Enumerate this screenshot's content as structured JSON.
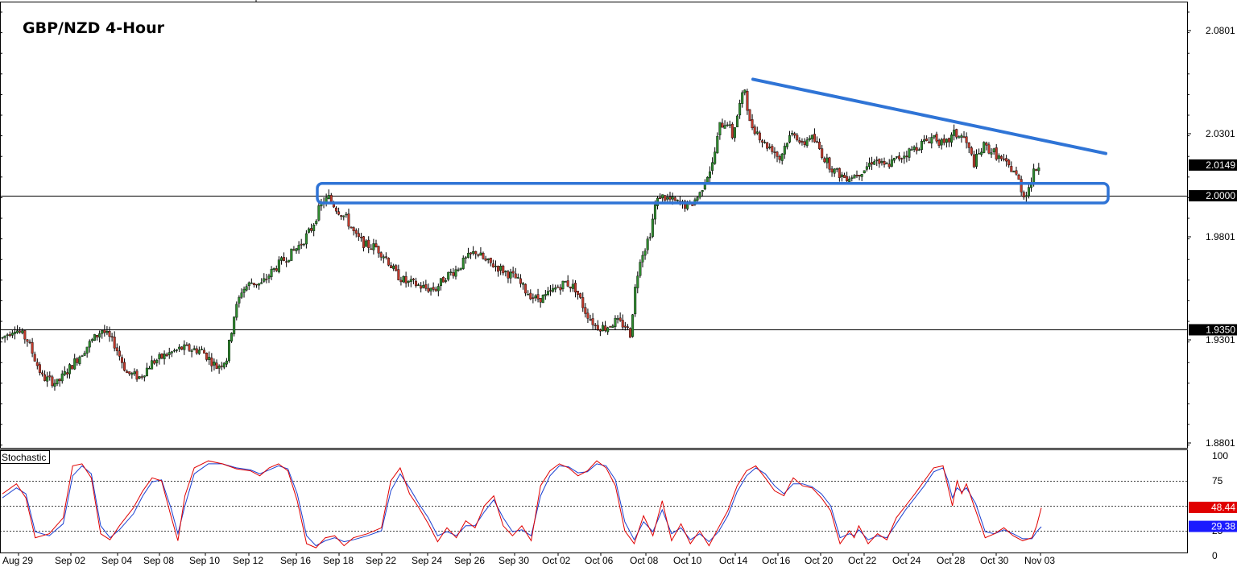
{
  "chart_data": {
    "type": "candlestick",
    "title": "GBP/NZD 4-Hour",
    "y_ticks": [
      "2.0801",
      "2.0301",
      "1.9801",
      "1.9301",
      "1.8801"
    ],
    "ylim": [
      1.8801,
      2.0931
    ],
    "x_ticks": [
      "Aug 29",
      "Sep 02",
      "Sep 04",
      "Sep 08",
      "Sep 10",
      "Sep 12",
      "Sep 16",
      "Sep 18",
      "Sep 22",
      "Sep 24",
      "Sep 26",
      "Sep 30",
      "Oct 02",
      "Oct 06",
      "Oct 08",
      "Oct 10",
      "Oct 14",
      "Oct 16",
      "Oct 20",
      "Oct 22",
      "Oct 24",
      "Oct 28",
      "Oct 30",
      "Nov 03"
    ],
    "levels": [
      {
        "label": "2.0000",
        "value": 2.0
      },
      {
        "label": "1.9350",
        "value": 1.935
      }
    ],
    "current_price": {
      "label": "2.0149",
      "value": 2.0149
    },
    "trendline": {
      "from": 2.0565,
      "to": 2.0205
    },
    "support_zone": {
      "top": 2.006,
      "bottom": 1.9965
    },
    "anchors": [
      [
        0,
        1.931
      ],
      [
        5,
        1.936
      ],
      [
        10,
        1.93
      ],
      [
        16,
        1.912
      ],
      [
        22,
        1.909
      ],
      [
        28,
        1.918
      ],
      [
        34,
        1.927
      ],
      [
        40,
        1.935
      ],
      [
        45,
        1.928
      ],
      [
        50,
        1.914
      ],
      [
        55,
        1.912
      ],
      [
        60,
        1.919
      ],
      [
        66,
        1.923
      ],
      [
        72,
        1.926
      ],
      [
        80,
        1.925
      ],
      [
        86,
        1.917
      ],
      [
        90,
        1.921
      ],
      [
        93,
        1.942
      ],
      [
        96,
        1.954
      ],
      [
        100,
        1.958
      ],
      [
        104,
        1.957
      ],
      [
        108,
        1.963
      ],
      [
        112,
        1.968
      ],
      [
        116,
        1.972
      ],
      [
        120,
        1.977
      ],
      [
        124,
        1.984
      ],
      [
        128,
        1.996
      ],
      [
        131,
        1.999
      ],
      [
        134,
        1.994
      ],
      [
        138,
        1.989
      ],
      [
        142,
        1.98
      ],
      [
        146,
        1.976
      ],
      [
        150,
        1.975
      ],
      [
        154,
        1.97
      ],
      [
        158,
        1.962
      ],
      [
        162,
        1.958
      ],
      [
        166,
        1.957
      ],
      [
        170,
        1.955
      ],
      [
        174,
        1.955
      ],
      [
        178,
        1.961
      ],
      [
        182,
        1.964
      ],
      [
        186,
        1.969
      ],
      [
        190,
        1.973
      ],
      [
        194,
        1.968
      ],
      [
        198,
        1.966
      ],
      [
        202,
        1.963
      ],
      [
        206,
        1.96
      ],
      [
        210,
        1.954
      ],
      [
        214,
        1.95
      ],
      [
        218,
        1.951
      ],
      [
        222,
        1.955
      ],
      [
        226,
        1.958
      ],
      [
        230,
        1.955
      ],
      [
        234,
        1.944
      ],
      [
        238,
        1.937
      ],
      [
        242,
        1.936
      ],
      [
        246,
        1.939
      ],
      [
        250,
        1.937
      ],
      [
        252,
        1.933
      ],
      [
        254,
        1.955
      ],
      [
        256,
        1.97
      ],
      [
        258,
        1.975
      ],
      [
        260,
        1.982
      ],
      [
        262,
        1.995
      ],
      [
        264,
        2.0
      ],
      [
        268,
        1.998
      ],
      [
        272,
        1.996
      ],
      [
        276,
        1.995
      ],
      [
        280,
        2.001
      ],
      [
        282,
        2.008
      ],
      [
        285,
        2.015
      ],
      [
        288,
        2.034
      ],
      [
        291,
        2.036
      ],
      [
        293,
        2.029
      ],
      [
        296,
        2.044
      ],
      [
        298,
        2.052
      ],
      [
        300,
        2.035
      ],
      [
        303,
        2.031
      ],
      [
        306,
        2.025
      ],
      [
        309,
        2.023
      ],
      [
        312,
        2.018
      ],
      [
        315,
        2.027
      ],
      [
        318,
        2.031
      ],
      [
        321,
        2.024
      ],
      [
        324,
        2.029
      ],
      [
        327,
        2.025
      ],
      [
        330,
        2.018
      ],
      [
        334,
        2.012
      ],
      [
        338,
        2.009
      ],
      [
        342,
        2.01
      ],
      [
        346,
        2.013
      ],
      [
        350,
        2.018
      ],
      [
        354,
        2.014
      ],
      [
        358,
        2.017
      ],
      [
        362,
        2.02
      ],
      [
        366,
        2.023
      ],
      [
        370,
        2.026
      ],
      [
        374,
        2.029
      ],
      [
        378,
        2.024
      ],
      [
        382,
        2.03
      ],
      [
        386,
        2.028
      ],
      [
        390,
        2.016
      ],
      [
        394,
        2.024
      ],
      [
        398,
        2.021
      ],
      [
        402,
        2.016
      ],
      [
        406,
        2.012
      ],
      [
        408,
        2.007
      ],
      [
        410,
        2.0
      ],
      [
        412,
        2.004
      ],
      [
        414,
        2.011
      ],
      [
        416,
        2.015
      ]
    ]
  },
  "indicator": {
    "name": "Stochastic",
    "y_ticks": [
      "100",
      "75",
      "50",
      "25",
      "0"
    ],
    "levels": [
      75,
      50,
      25
    ],
    "red_value": "48.44",
    "blue_value": "29.38",
    "red_anchors": [
      [
        0,
        62
      ],
      [
        6,
        72
      ],
      [
        10,
        58
      ],
      [
        14,
        18
      ],
      [
        20,
        22
      ],
      [
        26,
        38
      ],
      [
        30,
        90
      ],
      [
        34,
        92
      ],
      [
        38,
        78
      ],
      [
        42,
        22
      ],
      [
        46,
        16
      ],
      [
        50,
        30
      ],
      [
        56,
        48
      ],
      [
        60,
        65
      ],
      [
        64,
        78
      ],
      [
        68,
        75
      ],
      [
        72,
        40
      ],
      [
        75,
        15
      ],
      [
        78,
        60
      ],
      [
        82,
        88
      ],
      [
        88,
        95
      ],
      [
        94,
        92
      ],
      [
        100,
        87
      ],
      [
        106,
        85
      ],
      [
        110,
        80
      ],
      [
        114,
        88
      ],
      [
        118,
        92
      ],
      [
        122,
        85
      ],
      [
        126,
        55
      ],
      [
        130,
        12
      ],
      [
        134,
        8
      ],
      [
        138,
        18
      ],
      [
        142,
        20
      ],
      [
        146,
        10
      ],
      [
        150,
        18
      ],
      [
        156,
        22
      ],
      [
        162,
        28
      ],
      [
        166,
        75
      ],
      [
        170,
        88
      ],
      [
        174,
        62
      ],
      [
        178,
        48
      ],
      [
        182,
        32
      ],
      [
        186,
        14
      ],
      [
        190,
        28
      ],
      [
        194,
        18
      ],
      [
        198,
        35
      ],
      [
        202,
        28
      ],
      [
        206,
        50
      ],
      [
        210,
        60
      ],
      [
        214,
        30
      ],
      [
        218,
        20
      ],
      [
        222,
        30
      ],
      [
        226,
        15
      ],
      [
        230,
        70
      ],
      [
        234,
        85
      ],
      [
        238,
        92
      ],
      [
        242,
        88
      ],
      [
        246,
        80
      ],
      [
        250,
        85
      ],
      [
        254,
        95
      ],
      [
        258,
        88
      ],
      [
        262,
        70
      ],
      [
        266,
        25
      ],
      [
        270,
        12
      ],
      [
        274,
        40
      ],
      [
        278,
        20
      ],
      [
        282,
        55
      ],
      [
        286,
        15
      ],
      [
        290,
        32
      ],
      [
        294,
        12
      ],
      [
        298,
        25
      ],
      [
        302,
        10
      ],
      [
        306,
        28
      ],
      [
        310,
        45
      ],
      [
        314,
        70
      ],
      [
        318,
        85
      ],
      [
        322,
        90
      ],
      [
        326,
        78
      ],
      [
        330,
        65
      ],
      [
        334,
        60
      ],
      [
        338,
        78
      ],
      [
        342,
        70
      ],
      [
        346,
        68
      ],
      [
        350,
        58
      ],
      [
        354,
        45
      ],
      [
        356,
        28
      ],
      [
        358,
        12
      ],
      [
        362,
        25
      ],
      [
        364,
        18
      ],
      [
        366,
        30
      ],
      [
        370,
        12
      ],
      [
        374,
        22
      ],
      [
        378,
        16
      ],
      [
        382,
        38
      ],
      [
        386,
        50
      ],
      [
        390,
        62
      ],
      [
        394,
        75
      ],
      [
        398,
        88
      ],
      [
        402,
        90
      ],
      [
        404,
        70
      ],
      [
        406,
        50
      ],
      [
        408,
        75
      ],
      [
        410,
        62
      ],
      [
        412,
        72
      ],
      [
        416,
        45
      ],
      [
        420,
        18
      ],
      [
        424,
        22
      ],
      [
        428,
        28
      ],
      [
        432,
        20
      ],
      [
        436,
        15
      ],
      [
        440,
        18
      ],
      [
        442,
        30
      ],
      [
        444,
        48
      ]
    ],
    "blue_anchors": [
      [
        0,
        58
      ],
      [
        6,
        68
      ],
      [
        10,
        62
      ],
      [
        14,
        24
      ],
      [
        20,
        20
      ],
      [
        26,
        32
      ],
      [
        30,
        80
      ],
      [
        34,
        90
      ],
      [
        38,
        82
      ],
      [
        42,
        30
      ],
      [
        46,
        18
      ],
      [
        50,
        26
      ],
      [
        56,
        42
      ],
      [
        60,
        60
      ],
      [
        64,
        74
      ],
      [
        68,
        76
      ],
      [
        72,
        48
      ],
      [
        75,
        22
      ],
      [
        78,
        50
      ],
      [
        82,
        82
      ],
      [
        88,
        92
      ],
      [
        94,
        92
      ],
      [
        100,
        88
      ],
      [
        106,
        86
      ],
      [
        110,
        82
      ],
      [
        114,
        86
      ],
      [
        118,
        90
      ],
      [
        122,
        87
      ],
      [
        126,
        62
      ],
      [
        130,
        20
      ],
      [
        134,
        10
      ],
      [
        138,
        15
      ],
      [
        142,
        18
      ],
      [
        146,
        14
      ],
      [
        150,
        16
      ],
      [
        156,
        20
      ],
      [
        162,
        25
      ],
      [
        166,
        65
      ],
      [
        170,
        82
      ],
      [
        174,
        68
      ],
      [
        178,
        52
      ],
      [
        182,
        38
      ],
      [
        186,
        20
      ],
      [
        190,
        24
      ],
      [
        194,
        20
      ],
      [
        198,
        30
      ],
      [
        202,
        30
      ],
      [
        206,
        44
      ],
      [
        210,
        56
      ],
      [
        214,
        38
      ],
      [
        218,
        24
      ],
      [
        222,
        26
      ],
      [
        226,
        20
      ],
      [
        230,
        60
      ],
      [
        234,
        80
      ],
      [
        238,
        90
      ],
      [
        242,
        89
      ],
      [
        246,
        83
      ],
      [
        250,
        84
      ],
      [
        254,
        92
      ],
      [
        258,
        90
      ],
      [
        262,
        76
      ],
      [
        266,
        34
      ],
      [
        270,
        16
      ],
      [
        274,
        34
      ],
      [
        278,
        24
      ],
      [
        282,
        46
      ],
      [
        286,
        22
      ],
      [
        290,
        28
      ],
      [
        294,
        16
      ],
      [
        298,
        22
      ],
      [
        302,
        14
      ],
      [
        306,
        24
      ],
      [
        310,
        40
      ],
      [
        314,
        64
      ],
      [
        318,
        80
      ],
      [
        322,
        88
      ],
      [
        326,
        82
      ],
      [
        330,
        70
      ],
      [
        334,
        62
      ],
      [
        338,
        72
      ],
      [
        342,
        72
      ],
      [
        346,
        69
      ],
      [
        350,
        62
      ],
      [
        354,
        50
      ],
      [
        356,
        34
      ],
      [
        358,
        18
      ],
      [
        362,
        22
      ],
      [
        364,
        20
      ],
      [
        366,
        26
      ],
      [
        370,
        16
      ],
      [
        374,
        20
      ],
      [
        378,
        18
      ],
      [
        382,
        32
      ],
      [
        386,
        46
      ],
      [
        390,
        58
      ],
      [
        394,
        70
      ],
      [
        398,
        84
      ],
      [
        402,
        88
      ],
      [
        404,
        76
      ],
      [
        406,
        58
      ],
      [
        408,
        68
      ],
      [
        410,
        64
      ],
      [
        412,
        68
      ],
      [
        416,
        52
      ],
      [
        420,
        24
      ],
      [
        424,
        22
      ],
      [
        428,
        26
      ],
      [
        432,
        22
      ],
      [
        436,
        17
      ],
      [
        440,
        17
      ],
      [
        442,
        24
      ],
      [
        444,
        29
      ]
    ]
  },
  "colors": {
    "up_candle": "#2e8b2e",
    "down_candle": "#c0392b",
    "wick": "#000000",
    "trendline": "#2f74d6",
    "stoch_red": "#e00000",
    "stoch_blue": "#1a3fd0",
    "current_tag_bg": "#000000",
    "red_tag_bg": "#e00000",
    "blue_tag_bg": "#1a1aff"
  }
}
